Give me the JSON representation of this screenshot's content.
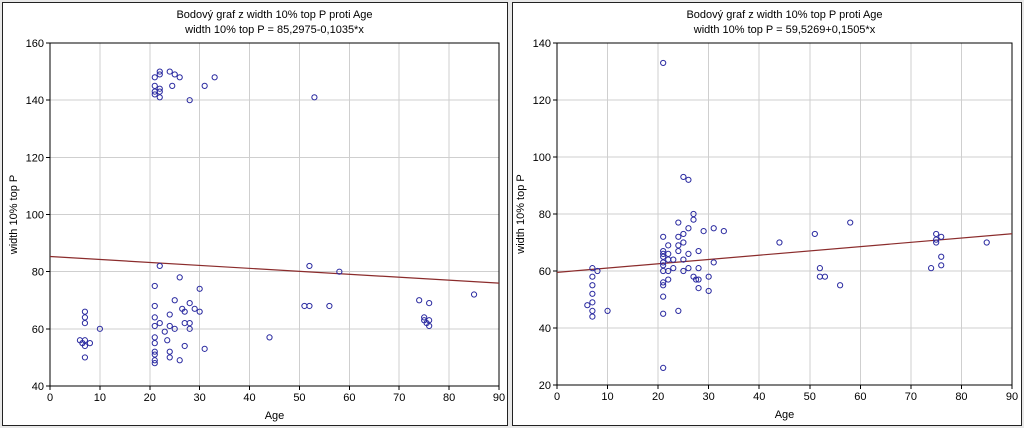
{
  "chart_data": [
    {
      "type": "scatter",
      "title": "Bodový graf z width 10% top P proti Age",
      "subtitle": "width 10% top P = 85,2975-0,1035*x",
      "xlabel": "Age",
      "ylabel": "width 10% top P",
      "xlim": [
        0,
        90
      ],
      "ylim": [
        40,
        160
      ],
      "x_ticks": [
        0,
        10,
        20,
        30,
        40,
        50,
        60,
        70,
        80,
        90
      ],
      "y_ticks": [
        40,
        60,
        80,
        100,
        120,
        140,
        160
      ],
      "grid": true,
      "fit_line": {
        "intercept": 85.2975,
        "slope": -0.1035
      },
      "colors": {
        "points": "#2a2aa0",
        "fit": "#8b2c2c"
      },
      "points": [
        {
          "x": 6,
          "y": 56
        },
        {
          "x": 6.5,
          "y": 55
        },
        {
          "x": 7,
          "y": 64
        },
        {
          "x": 7,
          "y": 62
        },
        {
          "x": 7,
          "y": 66
        },
        {
          "x": 7,
          "y": 56
        },
        {
          "x": 7,
          "y": 54
        },
        {
          "x": 7,
          "y": 50
        },
        {
          "x": 8,
          "y": 55
        },
        {
          "x": 10,
          "y": 60
        },
        {
          "x": 21,
          "y": 148
        },
        {
          "x": 21,
          "y": 145
        },
        {
          "x": 21,
          "y": 143
        },
        {
          "x": 21,
          "y": 142
        },
        {
          "x": 22,
          "y": 150
        },
        {
          "x": 22,
          "y": 149
        },
        {
          "x": 22,
          "y": 144
        },
        {
          "x": 22,
          "y": 143
        },
        {
          "x": 22,
          "y": 141
        },
        {
          "x": 24,
          "y": 150
        },
        {
          "x": 25,
          "y": 149
        },
        {
          "x": 24.5,
          "y": 145
        },
        {
          "x": 26,
          "y": 148
        },
        {
          "x": 28,
          "y": 140
        },
        {
          "x": 31,
          "y": 145
        },
        {
          "x": 33,
          "y": 148
        },
        {
          "x": 53,
          "y": 141
        },
        {
          "x": 21,
          "y": 75
        },
        {
          "x": 21,
          "y": 68
        },
        {
          "x": 21,
          "y": 64
        },
        {
          "x": 21,
          "y": 61
        },
        {
          "x": 21,
          "y": 57
        },
        {
          "x": 21,
          "y": 55
        },
        {
          "x": 21,
          "y": 52
        },
        {
          "x": 21,
          "y": 51
        },
        {
          "x": 21,
          "y": 49
        },
        {
          "x": 21,
          "y": 48
        },
        {
          "x": 22,
          "y": 82
        },
        {
          "x": 22,
          "y": 62
        },
        {
          "x": 23,
          "y": 59
        },
        {
          "x": 23.5,
          "y": 56
        },
        {
          "x": 24,
          "y": 65
        },
        {
          "x": 24,
          "y": 61
        },
        {
          "x": 24,
          "y": 52
        },
        {
          "x": 24,
          "y": 50
        },
        {
          "x": 25,
          "y": 70
        },
        {
          "x": 25,
          "y": 60
        },
        {
          "x": 26,
          "y": 78
        },
        {
          "x": 26,
          "y": 49
        },
        {
          "x": 26.5,
          "y": 67
        },
        {
          "x": 27,
          "y": 66
        },
        {
          "x": 27,
          "y": 62
        },
        {
          "x": 27,
          "y": 54
        },
        {
          "x": 28,
          "y": 69
        },
        {
          "x": 28,
          "y": 62
        },
        {
          "x": 28,
          "y": 60
        },
        {
          "x": 29,
          "y": 67
        },
        {
          "x": 30,
          "y": 74
        },
        {
          "x": 30,
          "y": 66
        },
        {
          "x": 31,
          "y": 53
        },
        {
          "x": 44,
          "y": 57
        },
        {
          "x": 51,
          "y": 68
        },
        {
          "x": 52,
          "y": 68
        },
        {
          "x": 52,
          "y": 82
        },
        {
          "x": 56,
          "y": 68
        },
        {
          "x": 58,
          "y": 80
        },
        {
          "x": 74,
          "y": 70
        },
        {
          "x": 75,
          "y": 64
        },
        {
          "x": 75,
          "y": 63
        },
        {
          "x": 75.5,
          "y": 62
        },
        {
          "x": 76,
          "y": 69
        },
        {
          "x": 76,
          "y": 63
        },
        {
          "x": 76,
          "y": 61
        },
        {
          "x": 85,
          "y": 72
        }
      ]
    },
    {
      "type": "scatter",
      "title": "Bodový graf z width 10% top P proti Age",
      "subtitle": "width 10% top P = 59,5269+0,1505*x",
      "xlabel": "Age",
      "ylabel": "width 10% top P",
      "xlim": [
        0,
        90
      ],
      "ylim": [
        20,
        140
      ],
      "x_ticks": [
        0,
        10,
        20,
        30,
        40,
        50,
        60,
        70,
        80,
        90
      ],
      "y_ticks": [
        20,
        40,
        60,
        80,
        100,
        120,
        140
      ],
      "grid": true,
      "fit_line": {
        "intercept": 59.5269,
        "slope": 0.1505
      },
      "colors": {
        "points": "#2a2aa0",
        "fit": "#8b2c2c"
      },
      "points": [
        {
          "x": 6,
          "y": 48
        },
        {
          "x": 7,
          "y": 61
        },
        {
          "x": 7,
          "y": 58
        },
        {
          "x": 7,
          "y": 55
        },
        {
          "x": 7,
          "y": 52
        },
        {
          "x": 7,
          "y": 49
        },
        {
          "x": 7,
          "y": 46
        },
        {
          "x": 7,
          "y": 44
        },
        {
          "x": 8,
          "y": 60
        },
        {
          "x": 10,
          "y": 46
        },
        {
          "x": 21,
          "y": 133
        },
        {
          "x": 21,
          "y": 72
        },
        {
          "x": 21,
          "y": 67
        },
        {
          "x": 21,
          "y": 66
        },
        {
          "x": 21,
          "y": 65
        },
        {
          "x": 21,
          "y": 63
        },
        {
          "x": 21,
          "y": 62
        },
        {
          "x": 21,
          "y": 60
        },
        {
          "x": 21,
          "y": 56
        },
        {
          "x": 21,
          "y": 55
        },
        {
          "x": 21,
          "y": 51
        },
        {
          "x": 21,
          "y": 45
        },
        {
          "x": 21,
          "y": 26
        },
        {
          "x": 22,
          "y": 69
        },
        {
          "x": 22,
          "y": 66
        },
        {
          "x": 22,
          "y": 64
        },
        {
          "x": 22,
          "y": 60
        },
        {
          "x": 22,
          "y": 57
        },
        {
          "x": 23,
          "y": 64
        },
        {
          "x": 23,
          "y": 61
        },
        {
          "x": 24,
          "y": 77
        },
        {
          "x": 24,
          "y": 72
        },
        {
          "x": 24,
          "y": 69
        },
        {
          "x": 24,
          "y": 67
        },
        {
          "x": 24,
          "y": 46
        },
        {
          "x": 25,
          "y": 93
        },
        {
          "x": 25,
          "y": 73
        },
        {
          "x": 25,
          "y": 70
        },
        {
          "x": 25,
          "y": 64
        },
        {
          "x": 25,
          "y": 60
        },
        {
          "x": 26,
          "y": 92
        },
        {
          "x": 26,
          "y": 75
        },
        {
          "x": 26,
          "y": 66
        },
        {
          "x": 26,
          "y": 61
        },
        {
          "x": 27,
          "y": 80
        },
        {
          "x": 27,
          "y": 78
        },
        {
          "x": 27,
          "y": 58
        },
        {
          "x": 27.5,
          "y": 57
        },
        {
          "x": 28,
          "y": 67
        },
        {
          "x": 28,
          "y": 61
        },
        {
          "x": 28,
          "y": 57
        },
        {
          "x": 28,
          "y": 54
        },
        {
          "x": 29,
          "y": 74
        },
        {
          "x": 30,
          "y": 58
        },
        {
          "x": 30,
          "y": 53
        },
        {
          "x": 31,
          "y": 75
        },
        {
          "x": 31,
          "y": 63
        },
        {
          "x": 33,
          "y": 74
        },
        {
          "x": 44,
          "y": 70
        },
        {
          "x": 51,
          "y": 73
        },
        {
          "x": 52,
          "y": 61
        },
        {
          "x": 52,
          "y": 58
        },
        {
          "x": 53,
          "y": 58
        },
        {
          "x": 56,
          "y": 55
        },
        {
          "x": 58,
          "y": 77
        },
        {
          "x": 74,
          "y": 61
        },
        {
          "x": 75,
          "y": 73
        },
        {
          "x": 75,
          "y": 71
        },
        {
          "x": 75,
          "y": 70
        },
        {
          "x": 76,
          "y": 72
        },
        {
          "x": 76,
          "y": 65
        },
        {
          "x": 76,
          "y": 62
        },
        {
          "x": 85,
          "y": 70
        }
      ]
    }
  ]
}
